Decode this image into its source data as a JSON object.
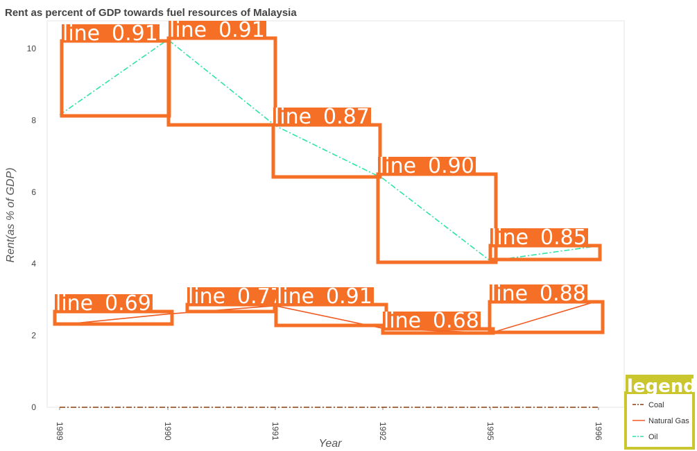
{
  "chart_data": {
    "type": "line",
    "title": "Rent as percent of GDP towards fuel resources of Malaysia",
    "xlabel": "Year",
    "ylabel": "Rent(as % of GDP)",
    "categories": [
      "1989",
      "1990",
      "1991",
      "1992",
      "1995",
      "1996"
    ],
    "ylim": [
      0,
      10.8
    ],
    "yticks": [
      0,
      2,
      4,
      6,
      8,
      10
    ],
    "grid": false,
    "legend_position": "bottom-right",
    "series": [
      {
        "name": "Coal",
        "color": "#8b3a0e",
        "dash": "dashdot",
        "values": [
          0.0,
          0.0,
          0.0,
          0.0,
          0.0,
          0.0
        ]
      },
      {
        "name": "Natural Gas",
        "color": "#f05a22",
        "dash": "solid",
        "values": [
          2.3,
          2.6,
          2.83,
          2.2,
          2.07,
          2.97
        ]
      },
      {
        "name": "Oil",
        "color": "#2de3a8",
        "dash": "dashdot",
        "values": [
          8.15,
          10.25,
          7.85,
          6.38,
          4.08,
          4.5
        ]
      }
    ]
  },
  "annotations": {
    "detection_color": "#f57026",
    "legend_box_color": "#c9c62e",
    "legend_tag": "legend",
    "detections": [
      {
        "label": "line",
        "score": "0.91"
      },
      {
        "label": "line",
        "score": "0.91"
      },
      {
        "label": "line",
        "score": "0.87"
      },
      {
        "label": "line",
        "score": "0.90"
      },
      {
        "label": "line",
        "score": "0.85"
      },
      {
        "label": "line",
        "score": "0.69"
      },
      {
        "label": "line",
        "score": "0.77"
      },
      {
        "label": "line",
        "score": "0.91"
      },
      {
        "label": "line",
        "score": "0.68"
      },
      {
        "label": "line",
        "score": "0.88"
      }
    ]
  }
}
